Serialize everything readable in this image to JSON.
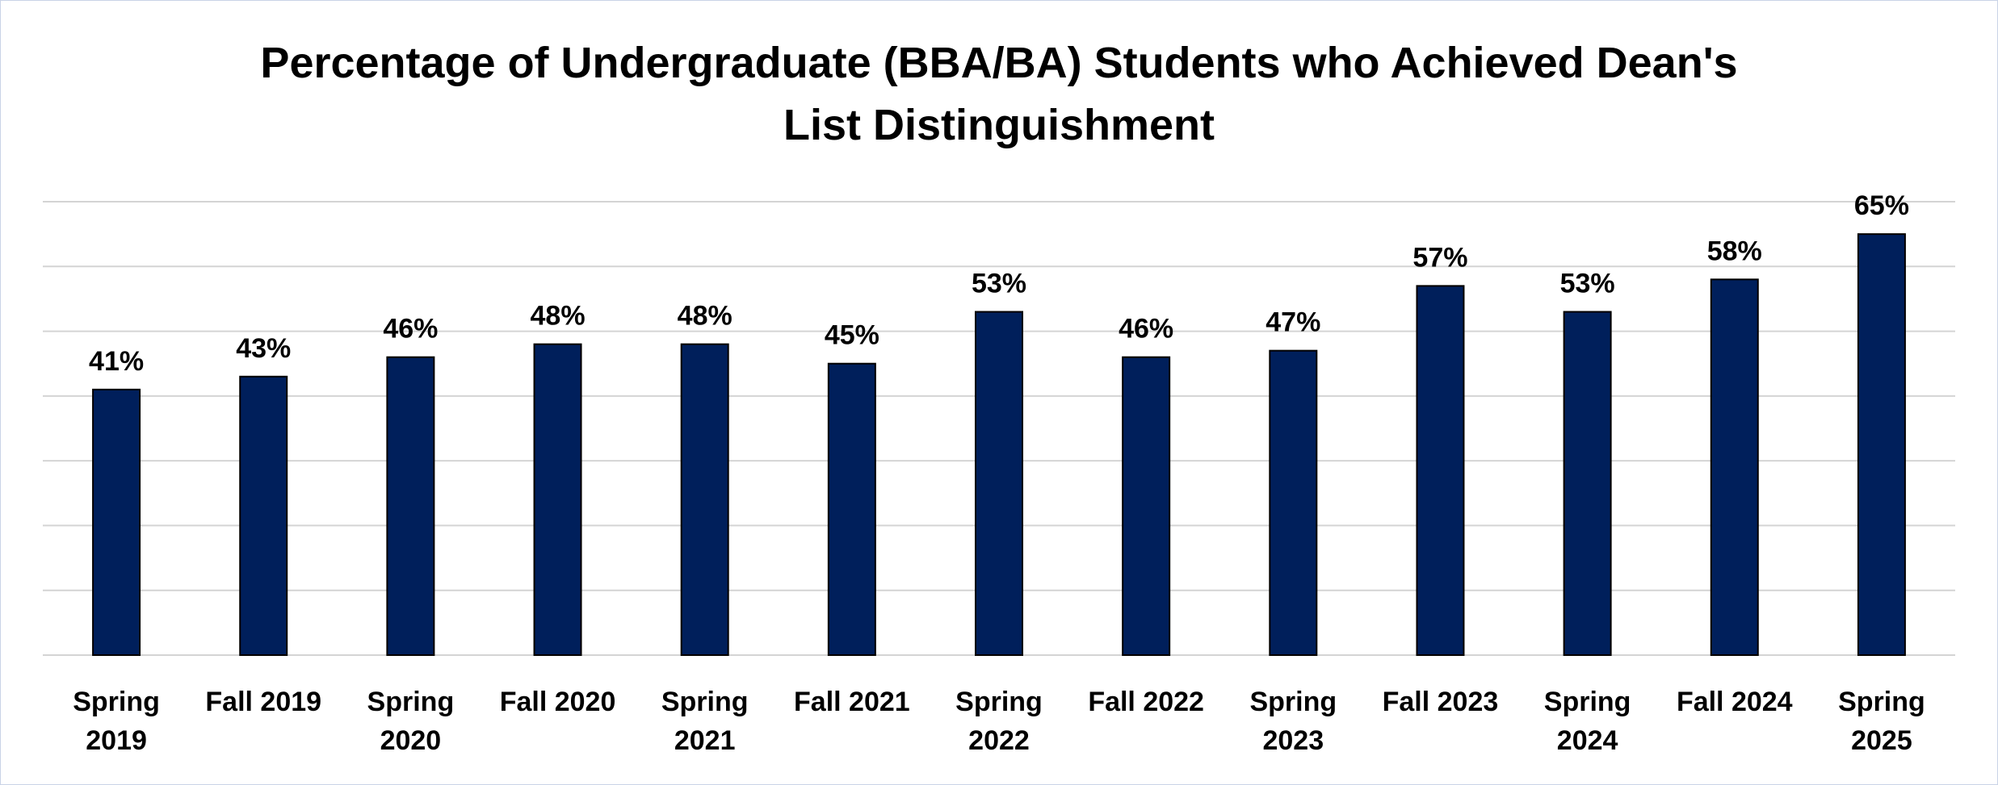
{
  "chart_data": {
    "type": "bar",
    "title_lines": [
      "Percentage of Undergraduate (BBA/BA) Students who Achieved Dean's",
      "List Distinguishment"
    ],
    "xlabel": "",
    "ylabel": "",
    "categories": [
      [
        "Spring",
        "2019"
      ],
      [
        "Fall 2019"
      ],
      [
        "Spring",
        "2020"
      ],
      [
        "Fall 2020"
      ],
      [
        "Spring",
        "2021"
      ],
      [
        "Fall 2021"
      ],
      [
        "Spring",
        "2022"
      ],
      [
        "Fall 2022"
      ],
      [
        "Spring",
        "2023"
      ],
      [
        "Fall 2023"
      ],
      [
        "Spring",
        "2024"
      ],
      [
        "Fall 2024"
      ],
      [
        "Spring",
        "2025"
      ]
    ],
    "values": [
      41,
      43,
      46,
      48,
      48,
      45,
      53,
      46,
      47,
      57,
      53,
      58,
      65
    ],
    "data_labels": [
      "41%",
      "43%",
      "46%",
      "48%",
      "48%",
      "45%",
      "53%",
      "46%",
      "47%",
      "57%",
      "53%",
      "58%",
      "65%"
    ],
    "ylim": [
      0,
      70
    ],
    "y_tick_step": 10,
    "y_tick_labels_shown": false,
    "grid": true,
    "legend": "none",
    "colors": {
      "bar": "#001f5b",
      "grid": "#d4d4d4",
      "border": "#c9d3e6"
    }
  }
}
